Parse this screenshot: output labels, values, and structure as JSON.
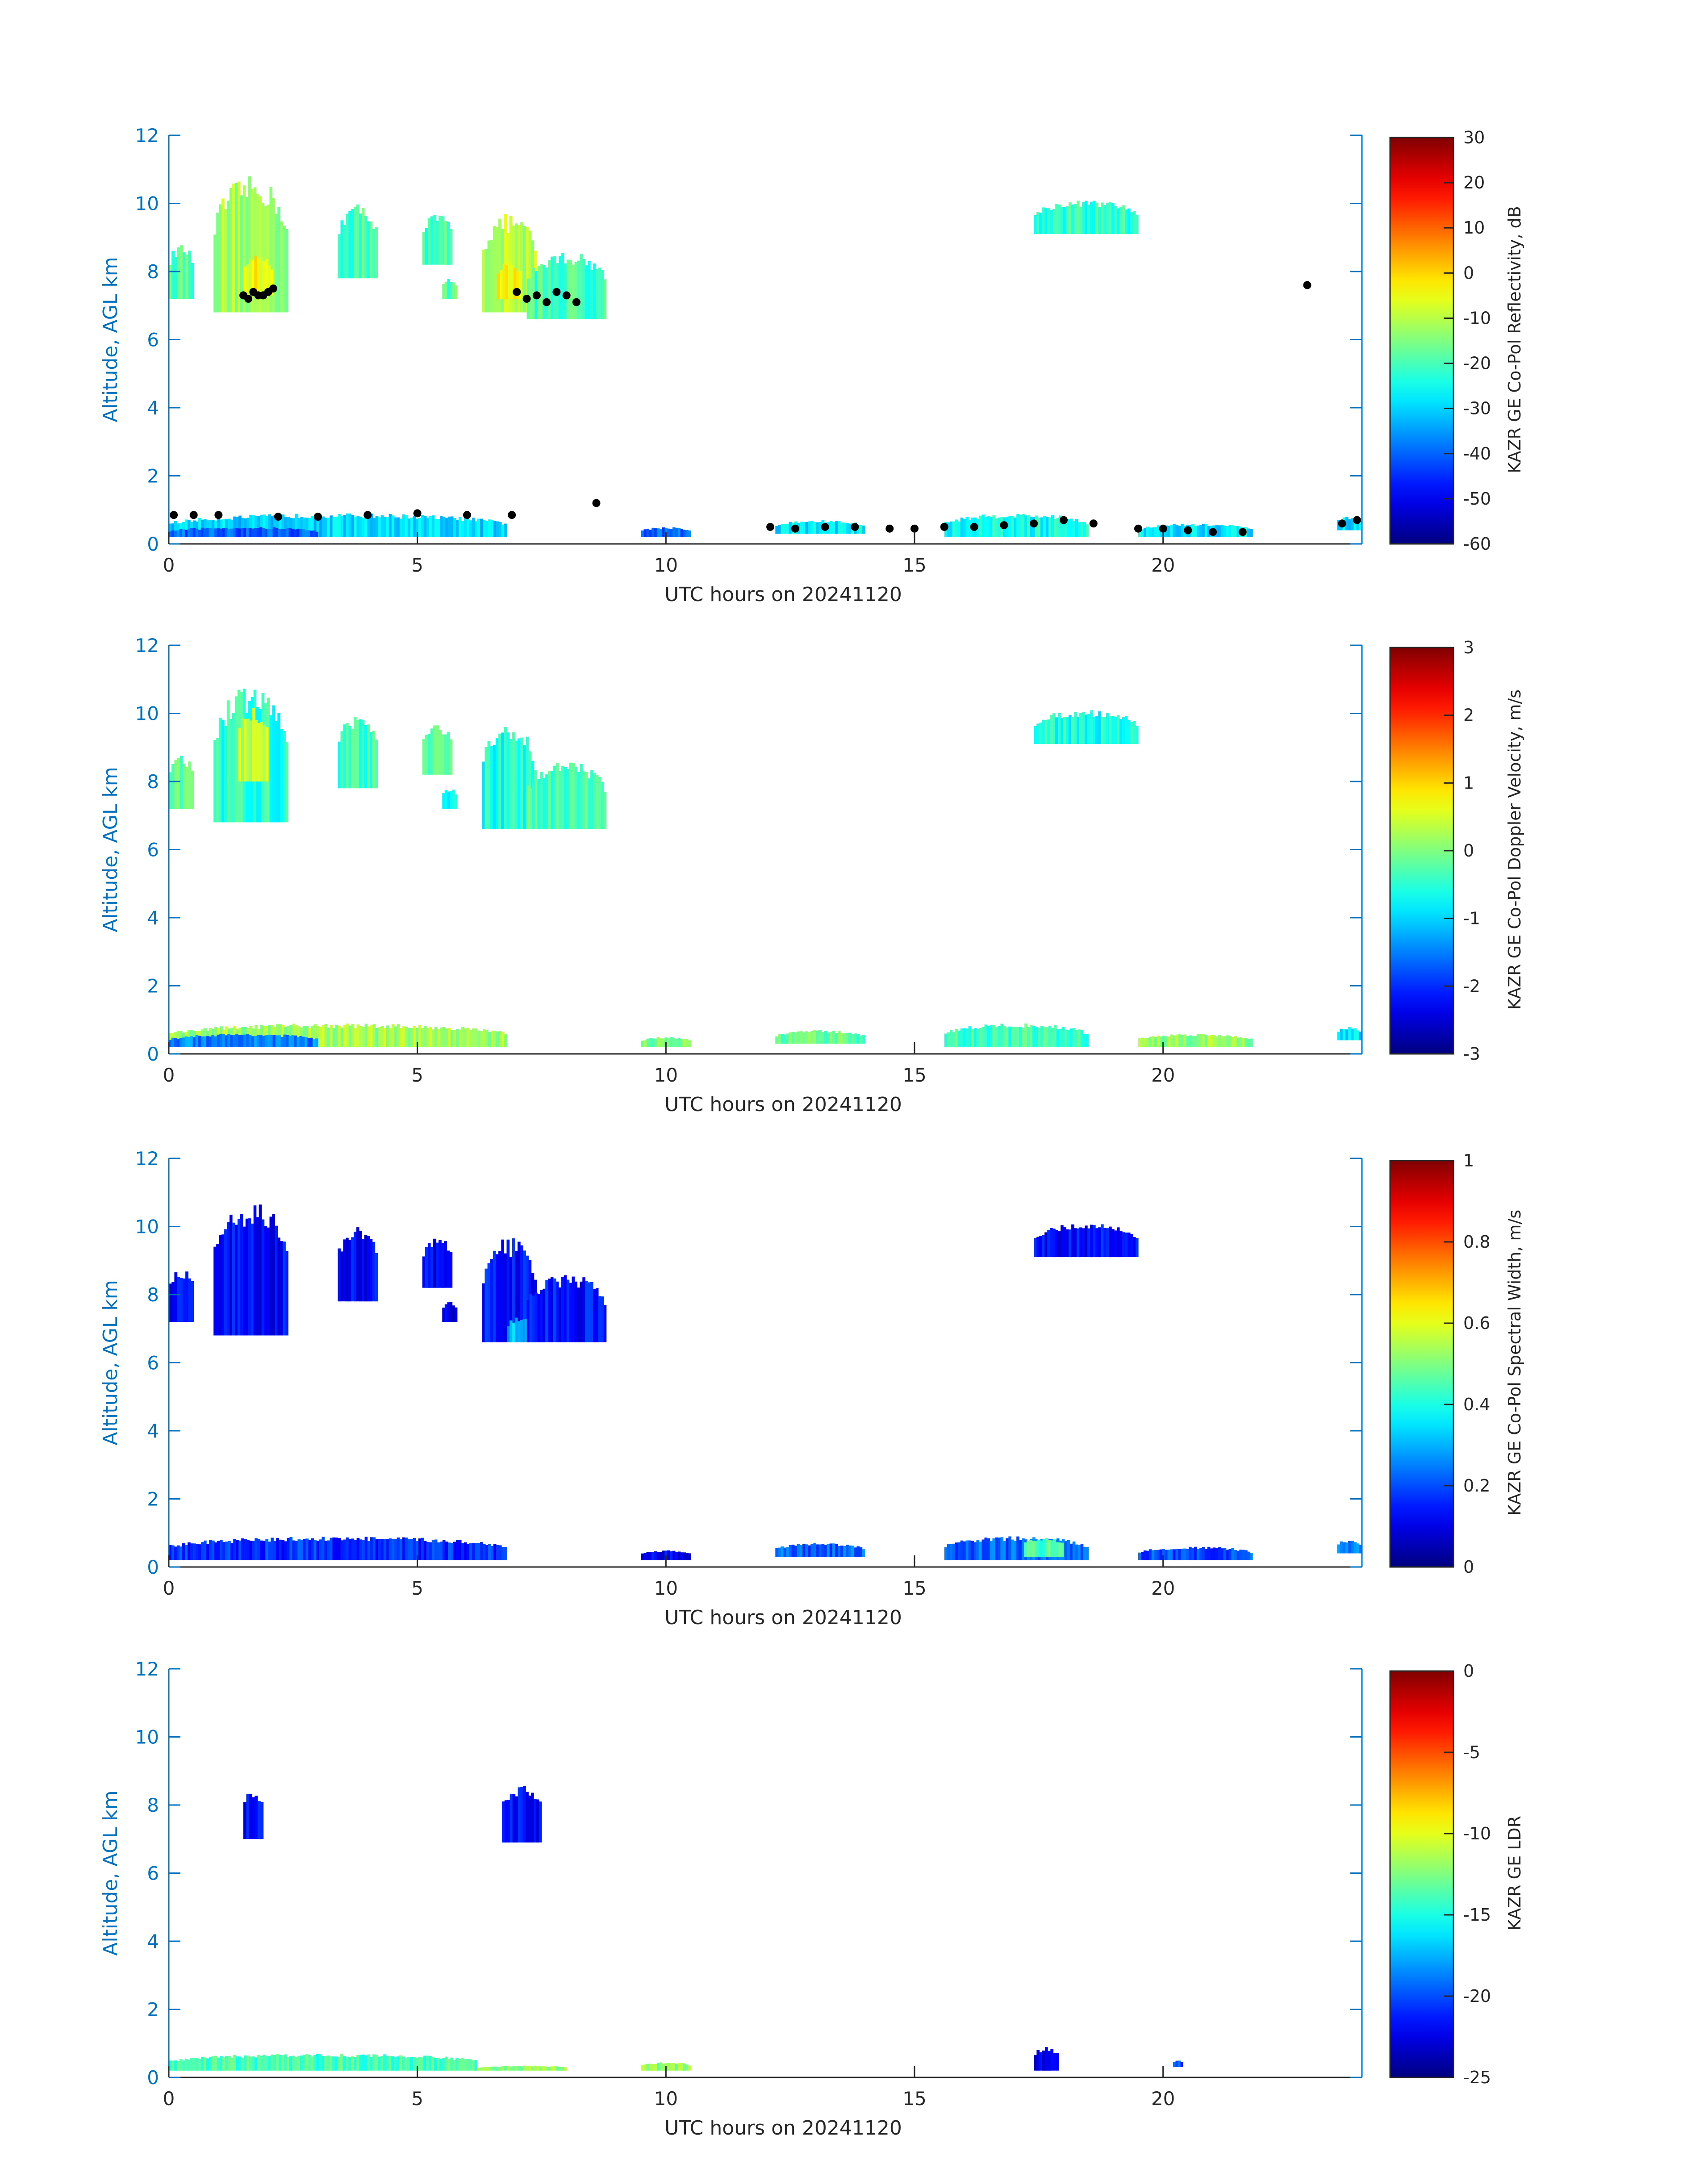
{
  "colors": {
    "axis_blue": "#0072bd",
    "text_dark": "#262626",
    "background": "#ffffff",
    "overlay_points": "#000000",
    "colormap": "jet"
  },
  "chart_data": [
    {
      "type": "heatmap",
      "xlabel": "UTC hours on 20241120",
      "ylabel": "Altitude, AGL km",
      "xlim": [
        0,
        24
      ],
      "ylim": [
        0,
        12
      ],
      "x_ticks": [
        "0",
        "5",
        "10",
        "15",
        "20"
      ],
      "y_ticks": [
        "0",
        "2",
        "4",
        "6",
        "8",
        "10",
        "12"
      ],
      "colorbar": {
        "label": "KAZR GE Co-Pol Reflectivity, dB",
        "range": [
          -60,
          30
        ],
        "ticks": [
          "30",
          "20",
          "10",
          "0",
          "-10",
          "-20",
          "-30",
          "-40",
          "-50",
          "-60"
        ]
      },
      "echoes": [
        {
          "x0": 0.0,
          "x1": 0.5,
          "y0": 7.2,
          "y1": 8.8,
          "value": -18
        },
        {
          "x0": 0.9,
          "x1": 2.4,
          "y0": 6.8,
          "y1": 10.8,
          "value": -12
        },
        {
          "x0": 1.5,
          "x1": 2.1,
          "y0": 7.3,
          "y1": 8.5,
          "value": -5
        },
        {
          "x0": 3.4,
          "x1": 4.2,
          "y0": 7.8,
          "y1": 10.0,
          "value": -20
        },
        {
          "x0": 5.1,
          "x1": 5.7,
          "y0": 8.2,
          "y1": 9.7,
          "value": -20
        },
        {
          "x0": 5.5,
          "x1": 5.8,
          "y0": 7.2,
          "y1": 7.8,
          "value": -18
        },
        {
          "x0": 6.3,
          "x1": 7.4,
          "y0": 6.8,
          "y1": 9.7,
          "value": -10
        },
        {
          "x0": 6.6,
          "x1": 7.1,
          "y0": 7.2,
          "y1": 8.3,
          "value": -3
        },
        {
          "x0": 7.2,
          "x1": 8.8,
          "y0": 6.6,
          "y1": 8.6,
          "value": -20
        },
        {
          "x0": 17.4,
          "x1": 19.5,
          "y0": 9.1,
          "y1": 10.1,
          "value": -22
        },
        {
          "x0": 0.0,
          "x1": 6.8,
          "y0": 0.2,
          "y1": 0.9,
          "value": -30
        },
        {
          "x0": 0.0,
          "x1": 3.0,
          "y0": 0.2,
          "y1": 0.5,
          "value": -40
        },
        {
          "x0": 9.5,
          "x1": 10.5,
          "y0": 0.2,
          "y1": 0.5,
          "value": -40
        },
        {
          "x0": 12.2,
          "x1": 14.0,
          "y0": 0.3,
          "y1": 0.7,
          "value": -28
        },
        {
          "x0": 15.6,
          "x1": 18.5,
          "y0": 0.2,
          "y1": 0.9,
          "value": -25
        },
        {
          "x0": 19.5,
          "x1": 21.8,
          "y0": 0.2,
          "y1": 0.6,
          "value": -28
        },
        {
          "x0": 23.5,
          "x1": 24.0,
          "y0": 0.4,
          "y1": 0.8,
          "value": -30
        }
      ],
      "overlay_points": {
        "x": [
          1.5,
          1.6,
          1.7,
          1.8,
          1.9,
          2.0,
          2.1,
          7.0,
          7.2,
          7.4,
          7.6,
          7.8,
          8.0,
          8.2,
          22.9,
          0.1,
          0.5,
          1.0,
          2.2,
          3.0,
          4.0,
          5.0,
          6.0,
          6.9,
          8.6,
          12.1,
          12.6,
          13.2,
          13.8,
          14.5,
          15.0,
          15.6,
          16.2,
          16.8,
          17.4,
          18.0,
          18.6,
          19.5,
          20.0,
          20.5,
          21.0,
          21.6,
          23.6,
          23.9
        ],
        "y": [
          7.3,
          7.2,
          7.4,
          7.3,
          7.3,
          7.4,
          7.5,
          7.4,
          7.2,
          7.3,
          7.1,
          7.4,
          7.3,
          7.1,
          7.6,
          0.85,
          0.85,
          0.85,
          0.8,
          0.8,
          0.85,
          0.9,
          0.85,
          0.85,
          1.2,
          0.5,
          0.45,
          0.5,
          0.5,
          0.45,
          0.45,
          0.5,
          0.5,
          0.55,
          0.6,
          0.7,
          0.6,
          0.45,
          0.45,
          0.4,
          0.35,
          0.35,
          0.6,
          0.7
        ]
      }
    },
    {
      "type": "heatmap",
      "xlabel": "UTC hours on 20241120",
      "ylabel": "Altitude, AGL km",
      "xlim": [
        0,
        24
      ],
      "ylim": [
        0,
        12
      ],
      "x_ticks": [
        "0",
        "5",
        "10",
        "15",
        "20"
      ],
      "y_ticks": [
        "0",
        "2",
        "4",
        "6",
        "8",
        "10",
        "12"
      ],
      "colorbar": {
        "label": "KAZR GE Co-Pol Doppler Velocity, m/s",
        "range": [
          -3,
          3
        ],
        "ticks": [
          "3",
          "2",
          "1",
          "0",
          "-1",
          "-2",
          "-3"
        ]
      },
      "echoes": [
        {
          "x0": 0.0,
          "x1": 0.5,
          "y0": 7.2,
          "y1": 8.8,
          "value": -0.3
        },
        {
          "x0": 0.9,
          "x1": 2.4,
          "y0": 6.8,
          "y1": 10.8,
          "value": -0.5
        },
        {
          "x0": 1.4,
          "x1": 2.0,
          "y0": 8.0,
          "y1": 10.2,
          "value": 0.3
        },
        {
          "x0": 3.4,
          "x1": 4.2,
          "y0": 7.8,
          "y1": 10.0,
          "value": -0.4
        },
        {
          "x0": 5.1,
          "x1": 5.7,
          "y0": 8.2,
          "y1": 9.7,
          "value": -0.3
        },
        {
          "x0": 5.5,
          "x1": 5.8,
          "y0": 7.2,
          "y1": 7.8,
          "value": -0.6
        },
        {
          "x0": 6.3,
          "x1": 7.4,
          "y0": 6.6,
          "y1": 9.7,
          "value": -0.6
        },
        {
          "x0": 7.2,
          "x1": 8.8,
          "y0": 6.6,
          "y1": 8.6,
          "value": -0.3
        },
        {
          "x0": 17.4,
          "x1": 19.5,
          "y0": 9.1,
          "y1": 10.1,
          "value": -0.6
        },
        {
          "x0": 0.0,
          "x1": 6.8,
          "y0": 0.2,
          "y1": 0.9,
          "value": 0.2
        },
        {
          "x0": 0.0,
          "x1": 3.0,
          "y0": 0.2,
          "y1": 0.6,
          "value": -1.5
        },
        {
          "x0": 9.5,
          "x1": 10.5,
          "y0": 0.2,
          "y1": 0.5,
          "value": 0.0
        },
        {
          "x0": 12.2,
          "x1": 14.0,
          "y0": 0.3,
          "y1": 0.7,
          "value": -0.2
        },
        {
          "x0": 15.6,
          "x1": 18.5,
          "y0": 0.2,
          "y1": 0.9,
          "value": -0.4
        },
        {
          "x0": 19.5,
          "x1": 21.8,
          "y0": 0.2,
          "y1": 0.6,
          "value": 0.1
        },
        {
          "x0": 23.5,
          "x1": 24.0,
          "y0": 0.4,
          "y1": 0.8,
          "value": -1.0
        }
      ]
    },
    {
      "type": "heatmap",
      "xlabel": "UTC hours on 20241120",
      "ylabel": "Altitude, AGL km",
      "xlim": [
        0,
        24
      ],
      "ylim": [
        0,
        12
      ],
      "x_ticks": [
        "0",
        "5",
        "10",
        "15",
        "20"
      ],
      "y_ticks": [
        "0",
        "2",
        "4",
        "6",
        "8",
        "10",
        "12"
      ],
      "colorbar": {
        "label": "KAZR GE Co-Pol Spectral Width, m/s",
        "range": [
          0,
          1
        ],
        "ticks": [
          "1",
          "0.8",
          "0.6",
          "0.4",
          "0.2",
          "0"
        ]
      },
      "echoes": [
        {
          "x0": 0.0,
          "x1": 0.5,
          "y0": 7.2,
          "y1": 8.8,
          "value": 0.12
        },
        {
          "x0": 0.9,
          "x1": 2.4,
          "y0": 6.8,
          "y1": 10.8,
          "value": 0.13
        },
        {
          "x0": 3.4,
          "x1": 4.2,
          "y0": 7.8,
          "y1": 10.0,
          "value": 0.12
        },
        {
          "x0": 5.1,
          "x1": 5.7,
          "y0": 8.2,
          "y1": 9.7,
          "value": 0.12
        },
        {
          "x0": 5.5,
          "x1": 5.8,
          "y0": 7.2,
          "y1": 7.8,
          "value": 0.1
        },
        {
          "x0": 6.3,
          "x1": 7.4,
          "y0": 6.6,
          "y1": 9.7,
          "value": 0.14
        },
        {
          "x0": 6.8,
          "x1": 7.6,
          "y0": 6.6,
          "y1": 7.4,
          "value": 0.3
        },
        {
          "x0": 7.2,
          "x1": 8.8,
          "y0": 6.6,
          "y1": 8.6,
          "value": 0.14
        },
        {
          "x0": 17.4,
          "x1": 19.5,
          "y0": 9.1,
          "y1": 10.1,
          "value": 0.13
        },
        {
          "x0": 0.0,
          "x1": 6.8,
          "y0": 0.2,
          "y1": 0.9,
          "value": 0.17
        },
        {
          "x0": 9.5,
          "x1": 10.5,
          "y0": 0.2,
          "y1": 0.5,
          "value": 0.12
        },
        {
          "x0": 12.2,
          "x1": 14.0,
          "y0": 0.3,
          "y1": 0.7,
          "value": 0.22
        },
        {
          "x0": 15.6,
          "x1": 18.5,
          "y0": 0.2,
          "y1": 0.9,
          "value": 0.22
        },
        {
          "x0": 17.2,
          "x1": 18.0,
          "y0": 0.3,
          "y1": 0.9,
          "value": 0.45
        },
        {
          "x0": 19.5,
          "x1": 21.8,
          "y0": 0.2,
          "y1": 0.6,
          "value": 0.2
        },
        {
          "x0": 23.5,
          "x1": 24.0,
          "y0": 0.4,
          "y1": 0.8,
          "value": 0.25
        }
      ]
    },
    {
      "type": "heatmap",
      "xlabel": "UTC hours on 20241120",
      "ylabel": "Altitude, AGL km",
      "xlim": [
        0,
        24
      ],
      "ylim": [
        0,
        12
      ],
      "x_ticks": [
        "0",
        "5",
        "10",
        "15",
        "20"
      ],
      "y_ticks": [
        "0",
        "2",
        "4",
        "6",
        "8",
        "10",
        "12"
      ],
      "colorbar": {
        "label": "KAZR GE LDR",
        "range": [
          -25,
          0
        ],
        "ticks": [
          "0",
          "-5",
          "-10",
          "-15",
          "-20",
          "-25"
        ]
      },
      "echoes": [
        {
          "x0": 1.5,
          "x1": 1.9,
          "y0": 7.0,
          "y1": 8.5,
          "value": -22
        },
        {
          "x0": 6.7,
          "x1": 7.5,
          "y0": 6.9,
          "y1": 8.6,
          "value": -22
        },
        {
          "x0": 0.0,
          "x1": 6.2,
          "y0": 0.2,
          "y1": 0.7,
          "value": -14
        },
        {
          "x0": 6.2,
          "x1": 8.0,
          "y0": 0.2,
          "y1": 0.35,
          "value": -12
        },
        {
          "x0": 9.5,
          "x1": 10.5,
          "y0": 0.2,
          "y1": 0.45,
          "value": -12
        },
        {
          "x0": 17.4,
          "x1": 17.9,
          "y0": 0.2,
          "y1": 0.9,
          "value": -22
        },
        {
          "x0": 20.2,
          "x1": 20.4,
          "y0": 0.3,
          "y1": 0.5,
          "value": -20
        }
      ]
    }
  ]
}
